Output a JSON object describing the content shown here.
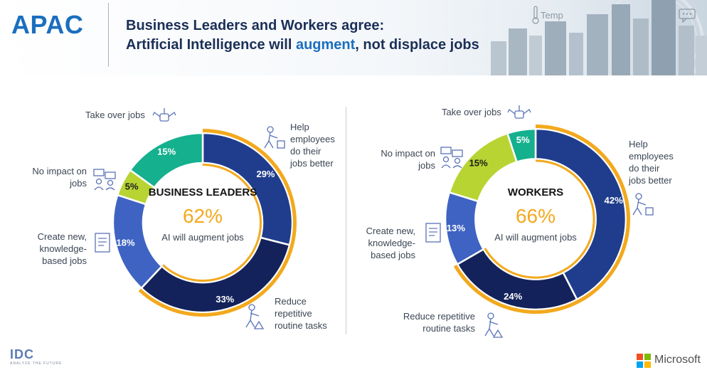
{
  "header": {
    "region": "APAC",
    "title_line1": "Business Leaders and Workers agree:",
    "title_line2_pre": "Artificial Intelligence will ",
    "title_line2_accent": "augment",
    "title_line2_post": ", not displace jobs",
    "weather_label": "Temp"
  },
  "colors": {
    "dark_navy": "#13225a",
    "navy": "#1f3d8c",
    "blue": "#3e63c2",
    "lime": "#b7d433",
    "teal": "#15b08e",
    "gold_ring": "#f3a91d",
    "accent": "#1a6fbf"
  },
  "chart_data": [
    {
      "type": "pie",
      "donut": true,
      "title": "BUSINESS LEADERS",
      "center_value": "62%",
      "center_subtitle": "AI will augment jobs",
      "slices": [
        {
          "label": "Help employees do their jobs better",
          "value": 29,
          "display": "29%",
          "color": "#1f3d8c",
          "icon": "worker-pushing-icon"
        },
        {
          "label": "Reduce repetitive routine tasks",
          "value": 33,
          "display": "33%",
          "color": "#13225a",
          "icon": "worker-lifting-icon"
        },
        {
          "label": "Create new, knowledge-based jobs",
          "value": 18,
          "display": "18%",
          "color": "#3e63c2",
          "icon": "document-icon"
        },
        {
          "label": "No impact on jobs",
          "value": 5,
          "display": "5%",
          "color": "#b7d433",
          "icon": "people-meeting-icon"
        },
        {
          "label": "Take over jobs",
          "value": 15,
          "display": "15%",
          "color": "#15b08e",
          "icon": "robot-arms-icon"
        }
      ],
      "augment_ring_spans": [
        "Help employees do their jobs better",
        "Reduce repetitive routine tasks"
      ]
    },
    {
      "type": "pie",
      "donut": true,
      "title": "WORKERS",
      "center_value": "66%",
      "center_subtitle": "AI will augment jobs",
      "slices": [
        {
          "label": "Help employees do their jobs better",
          "value": 42,
          "display": "42%",
          "color": "#1f3d8c",
          "icon": "worker-pushing-icon"
        },
        {
          "label": "Reduce repetitive routine tasks",
          "value": 24,
          "display": "24%",
          "color": "#13225a",
          "icon": "worker-lifting-icon"
        },
        {
          "label": "Create new, knowledge-based jobs",
          "value": 13,
          "display": "13%",
          "color": "#3e63c2",
          "icon": "document-icon"
        },
        {
          "label": "No impact on jobs",
          "value": 15,
          "display": "15%",
          "color": "#b7d433",
          "icon": "people-meeting-icon"
        },
        {
          "label": "Take over jobs",
          "value": 5,
          "display": "5%",
          "color": "#15b08e",
          "icon": "robot-arms-icon"
        }
      ],
      "augment_ring_spans": [
        "Help employees do their jobs better",
        "Reduce repetitive routine tasks"
      ]
    }
  ],
  "labels_left": {
    "take_over": "Take over jobs",
    "no_impact_1": "No impact on",
    "no_impact_2": "jobs",
    "create_1": "Create new,",
    "create_2": "knowledge-",
    "create_3": "based jobs",
    "help_1": "Help",
    "help_2": "employees",
    "help_3": "do their",
    "help_4": "jobs better",
    "reduce_1": "Reduce",
    "reduce_2": "repetitive",
    "reduce_3": "routine tasks"
  },
  "labels_right": {
    "take_over": "Take over jobs",
    "no_impact_1": "No impact on",
    "no_impact_2": "jobs",
    "create_1": "Create new,",
    "create_2": "knowledge-",
    "create_3": "based jobs",
    "help_1": "Help",
    "help_2": "employees",
    "help_3": "do their",
    "help_4": "jobs better",
    "reduce_1": "Reduce repetitive",
    "reduce_2": "routine tasks"
  },
  "footer": {
    "idc_logo": "IDC",
    "idc_tagline": "ANALYZE THE FUTURE",
    "microsoft": "Microsoft"
  }
}
